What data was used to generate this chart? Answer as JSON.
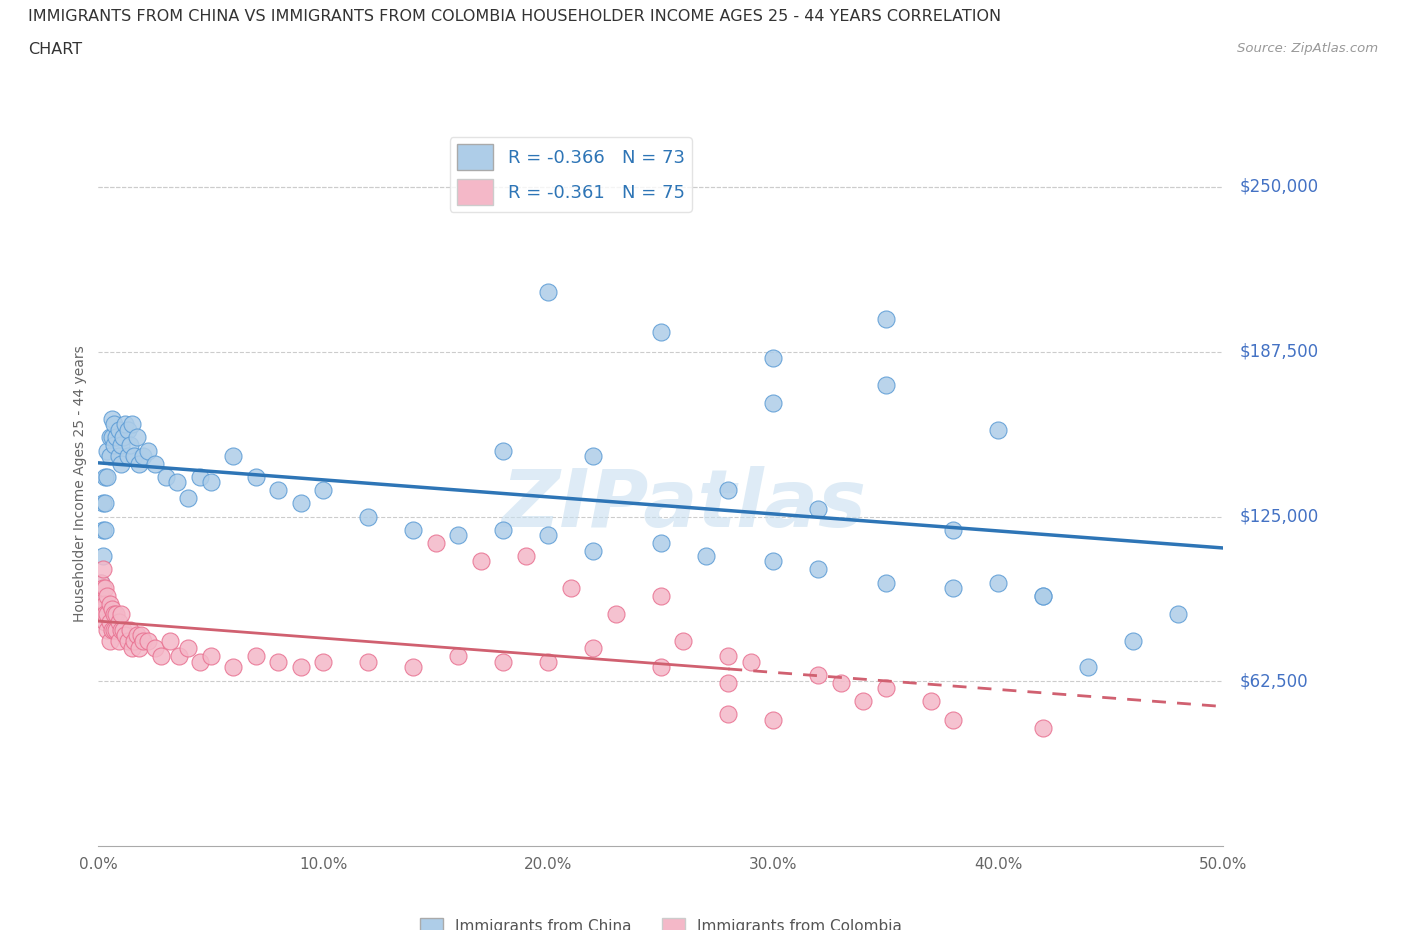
{
  "title_line1": "IMMIGRANTS FROM CHINA VS IMMIGRANTS FROM COLOMBIA HOUSEHOLDER INCOME AGES 25 - 44 YEARS CORRELATION",
  "title_line2": "CHART",
  "source_text": "Source: ZipAtlas.com",
  "ylabel": "Householder Income Ages 25 - 44 years",
  "xlim": [
    0.0,
    0.5
  ],
  "ylim": [
    0,
    275000
  ],
  "ytick_vals": [
    62500,
    125000,
    187500,
    250000
  ],
  "ytick_labels": [
    "$62,500",
    "$125,000",
    "$187,500",
    "$250,000"
  ],
  "xtick_vals": [
    0.0,
    0.1,
    0.2,
    0.3,
    0.4,
    0.5
  ],
  "xtick_labels": [
    "0.0%",
    "10.0%",
    "20.0%",
    "30.0%",
    "40.0%",
    "50.0%"
  ],
  "china_fill_color": "#aecde8",
  "china_edge_color": "#5b9bd5",
  "colombia_fill_color": "#f4b8c8",
  "colombia_edge_color": "#e87090",
  "trendline_china_color": "#2e75b6",
  "trendline_colombia_color": "#d06070",
  "R_china": -0.366,
  "N_china": 73,
  "R_colombia": -0.361,
  "N_colombia": 75,
  "legend_label_china": "Immigrants from China",
  "legend_label_colombia": "Immigrants from Colombia",
  "yaxis_label_color": "#4472c4",
  "watermark_color": "#c8dff0",
  "china_x": [
    0.001,
    0.001,
    0.002,
    0.002,
    0.002,
    0.003,
    0.003,
    0.003,
    0.004,
    0.004,
    0.005,
    0.005,
    0.006,
    0.006,
    0.007,
    0.007,
    0.008,
    0.009,
    0.009,
    0.01,
    0.01,
    0.011,
    0.012,
    0.013,
    0.013,
    0.014,
    0.015,
    0.016,
    0.017,
    0.018,
    0.02,
    0.022,
    0.025,
    0.03,
    0.035,
    0.04,
    0.045,
    0.05,
    0.06,
    0.07,
    0.08,
    0.09,
    0.1,
    0.12,
    0.14,
    0.16,
    0.18,
    0.2,
    0.22,
    0.25,
    0.27,
    0.3,
    0.32,
    0.35,
    0.38,
    0.4,
    0.42,
    0.44,
    0.46,
    0.48,
    0.3,
    0.35,
    0.4,
    0.2,
    0.25,
    0.3,
    0.35,
    0.18,
    0.22,
    0.28,
    0.32,
    0.38,
    0.42
  ],
  "china_y": [
    100000,
    95000,
    130000,
    120000,
    110000,
    140000,
    130000,
    120000,
    150000,
    140000,
    155000,
    148000,
    162000,
    155000,
    160000,
    152000,
    155000,
    148000,
    158000,
    152000,
    145000,
    155000,
    160000,
    148000,
    158000,
    152000,
    160000,
    148000,
    155000,
    145000,
    148000,
    150000,
    145000,
    140000,
    138000,
    132000,
    140000,
    138000,
    148000,
    140000,
    135000,
    130000,
    135000,
    125000,
    120000,
    118000,
    120000,
    118000,
    112000,
    115000,
    110000,
    108000,
    105000,
    100000,
    98000,
    100000,
    95000,
    68000,
    78000,
    88000,
    168000,
    175000,
    158000,
    210000,
    195000,
    185000,
    200000,
    150000,
    148000,
    135000,
    128000,
    120000,
    95000
  ],
  "colombia_x": [
    0.001,
    0.001,
    0.001,
    0.002,
    0.002,
    0.002,
    0.003,
    0.003,
    0.003,
    0.003,
    0.004,
    0.004,
    0.004,
    0.005,
    0.005,
    0.005,
    0.006,
    0.006,
    0.007,
    0.007,
    0.008,
    0.008,
    0.009,
    0.009,
    0.01,
    0.01,
    0.011,
    0.012,
    0.013,
    0.014,
    0.015,
    0.016,
    0.017,
    0.018,
    0.019,
    0.02,
    0.022,
    0.025,
    0.028,
    0.032,
    0.036,
    0.04,
    0.045,
    0.05,
    0.06,
    0.07,
    0.08,
    0.09,
    0.1,
    0.12,
    0.14,
    0.16,
    0.18,
    0.2,
    0.22,
    0.25,
    0.28,
    0.25,
    0.28,
    0.32,
    0.35,
    0.15,
    0.17,
    0.19,
    0.21,
    0.23,
    0.26,
    0.29,
    0.33,
    0.37,
    0.28,
    0.3,
    0.34,
    0.38,
    0.42
  ],
  "colombia_y": [
    100000,
    95000,
    88000,
    105000,
    98000,
    90000,
    98000,
    92000,
    85000,
    88000,
    95000,
    88000,
    82000,
    92000,
    85000,
    78000,
    90000,
    82000,
    88000,
    82000,
    88000,
    82000,
    85000,
    78000,
    82000,
    88000,
    82000,
    80000,
    78000,
    82000,
    75000,
    78000,
    80000,
    75000,
    80000,
    78000,
    78000,
    75000,
    72000,
    78000,
    72000,
    75000,
    70000,
    72000,
    68000,
    72000,
    70000,
    68000,
    70000,
    70000,
    68000,
    72000,
    70000,
    70000,
    75000,
    68000,
    62000,
    95000,
    72000,
    65000,
    60000,
    115000,
    108000,
    110000,
    98000,
    88000,
    78000,
    70000,
    62000,
    55000,
    50000,
    48000,
    55000,
    48000,
    45000
  ]
}
